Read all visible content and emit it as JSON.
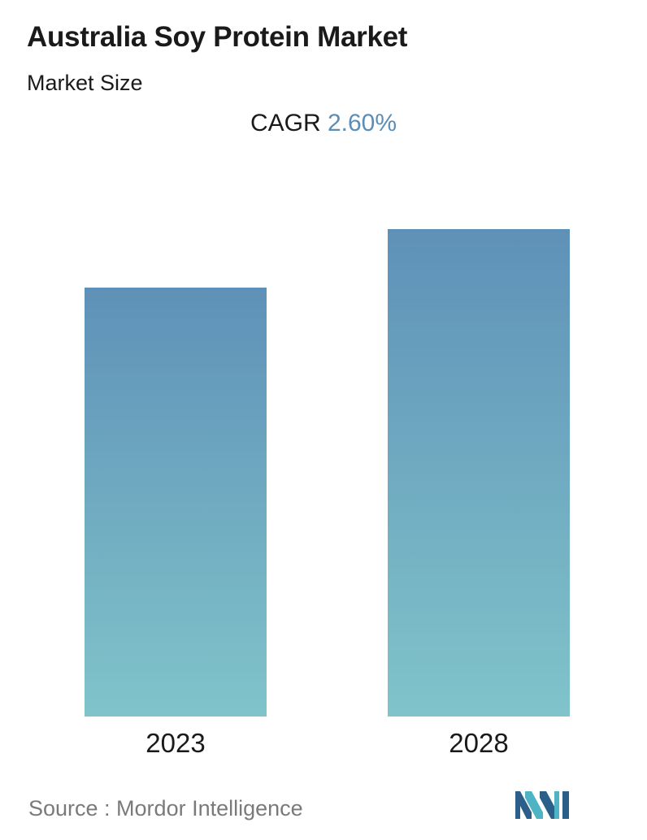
{
  "header": {
    "title": "Australia Soy Protein Market",
    "subtitle": "Market Size"
  },
  "cagr": {
    "label": "CAGR",
    "value": "2.60%"
  },
  "chart_data": {
    "type": "bar",
    "categories": [
      "2023",
      "2028"
    ],
    "values": [
      0.88,
      1.0
    ],
    "value_scale": "relative (no numeric axis shown)",
    "ylim": [
      0,
      1
    ],
    "grid": false,
    "legend": "none",
    "bar_gradient": {
      "top": "#5f91b8",
      "bottom": "#80c4ca"
    }
  },
  "footer": {
    "source": "Source :  Mordor Intelligence"
  },
  "logo": {
    "icon": "mordor-intelligence-logo-icon",
    "colors": [
      "#2c5e8a",
      "#4fb3c6"
    ]
  }
}
